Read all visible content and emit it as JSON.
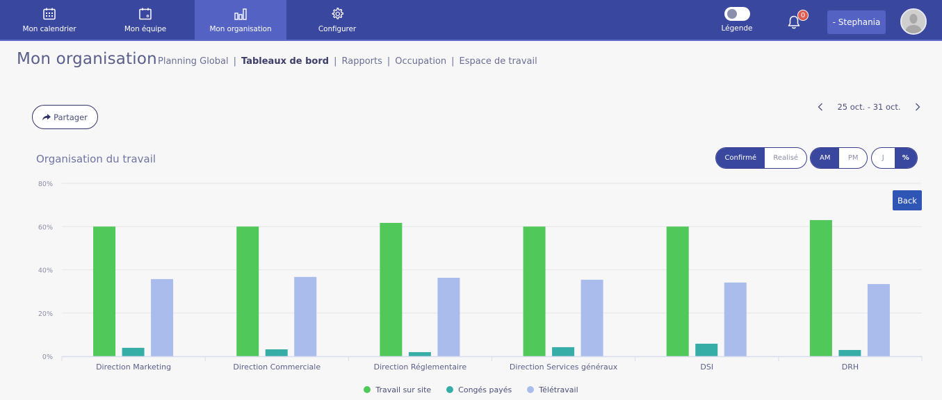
{
  "topnav": {
    "items": [
      {
        "label": "Mon calendrier",
        "icon": "calendar-grid-icon",
        "active": false
      },
      {
        "label": "Mon équipe",
        "icon": "calendar-team-icon",
        "active": false
      },
      {
        "label": "Mon organisation",
        "icon": "bar-chart-icon",
        "active": true
      },
      {
        "label": "Configurer",
        "icon": "gear-icon",
        "active": false
      }
    ],
    "legend_label": "Légende",
    "notification_count": "0",
    "user_label": "- Stephania"
  },
  "page": {
    "title": "Mon organisation",
    "subnav": [
      {
        "label": "Planning Global",
        "active": false
      },
      {
        "label": "Tableaux de bord",
        "active": true
      },
      {
        "label": "Rapports",
        "active": false
      },
      {
        "label": "Occupation",
        "active": false
      },
      {
        "label": "Espace de travail",
        "active": false
      }
    ],
    "share_label": "Partager",
    "date_range": "25 oct. - 31 oct.",
    "toggles": {
      "status": [
        {
          "label": "Confirmé",
          "on": true
        },
        {
          "label": "Realisé",
          "on": false
        }
      ],
      "period": [
        {
          "label": "AM",
          "on": true
        },
        {
          "label": "PM",
          "on": false
        }
      ],
      "unit": [
        {
          "label": "J",
          "on": false
        },
        {
          "label": "%",
          "on": true
        }
      ]
    },
    "back_label": "Back"
  },
  "colors": {
    "topbar": "#3a479f",
    "accent": "#3a479f",
    "series": [
      "#50c85a",
      "#36ada6",
      "#a9bcec"
    ]
  },
  "chart_data": {
    "type": "bar",
    "title": "Organisation du travail",
    "xlabel": "",
    "ylabel": "",
    "ylim": [
      0,
      80
    ],
    "yticks": [
      "0%",
      "20%",
      "40%",
      "60%",
      "80%"
    ],
    "ytick_values": [
      0,
      20,
      40,
      60,
      80
    ],
    "grid": true,
    "legend_position": "bottom",
    "categories": [
      "Direction Marketing",
      "Direction Commerciale",
      "Direction Réglementaire",
      "Direction Services généraux",
      "DSI",
      "DRH"
    ],
    "series": [
      {
        "name": "Travail sur site",
        "values": [
          60,
          60,
          61.7,
          60,
          60,
          63
        ]
      },
      {
        "name": "Congés payés",
        "values": [
          3.9,
          3.2,
          1.9,
          4.2,
          5.8,
          2.9
        ]
      },
      {
        "name": "Télétravail",
        "values": [
          35.7,
          36.7,
          36.3,
          35.4,
          34.1,
          33.4
        ]
      }
    ]
  }
}
